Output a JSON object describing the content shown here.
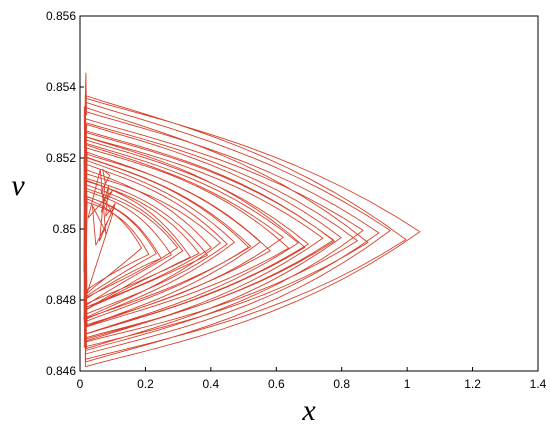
{
  "chart_data": {
    "type": "line",
    "title": "",
    "xlabel": "x",
    "ylabel": "v",
    "xlim": [
      0,
      1.4
    ],
    "ylim": [
      0.846,
      0.856
    ],
    "xticks": [
      "0",
      "0.2",
      "0.4",
      "0.6",
      "0.8",
      "1",
      "1.2",
      "1.4"
    ],
    "yticks": [
      "0.846",
      "0.848",
      "0.85",
      "0.852",
      "0.854",
      "0.856"
    ],
    "grid": false,
    "line_color": "#d9402b",
    "trajectory": {
      "start": [
        0.02,
        0.8532
      ],
      "tip": [
        1.05,
        0.8499
      ],
      "x_left": 0.012,
      "spiral_center": [
        0.14,
        0.8492
      ],
      "loops": 34,
      "inner_loop_scale": 0.22,
      "top_envelope_left": [
        0.8538,
        0.8508
      ],
      "top_envelope_right": [
        0.8513,
        0.8502
      ],
      "bottom_envelope_left": [
        0.8462,
        0.8482
      ],
      "bottom_envelope_right": [
        0.8483,
        0.8494
      ]
    }
  }
}
